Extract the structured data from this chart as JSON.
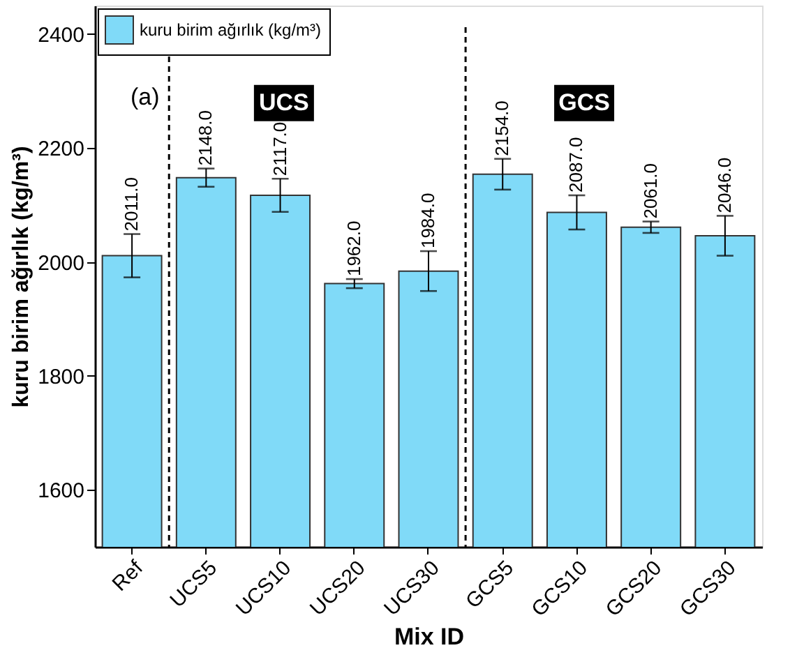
{
  "chart_data": {
    "type": "bar",
    "categories": [
      "Ref",
      "UCS5",
      "UCS10",
      "UCS20",
      "UCS30",
      "GCS5",
      "GCS10",
      "GCS20",
      "GCS30"
    ],
    "series": [
      {
        "name": "kuru birim ağırlık (kg/m³)",
        "color": "#80daf8",
        "values": [
          2011.0,
          2148.0,
          2117.0,
          1962.0,
          1984.0,
          2154.0,
          2087.0,
          2061.0,
          2046.0
        ],
        "errors": [
          38,
          16,
          29,
          8,
          35,
          27,
          30,
          10,
          35
        ]
      }
    ],
    "xlabel": "Mix ID",
    "ylabel": "kuru birim ağırlık (kg/m³)",
    "ylim": [
      1500,
      2450
    ],
    "yticks": [
      1600,
      1800,
      2000,
      2200,
      2400
    ],
    "value_labels": [
      "2011.0",
      "2148.0",
      "2117.0",
      "1962.0",
      "1984.0",
      "2154.0",
      "2087.0",
      "2061.0",
      "2046.0"
    ],
    "grid": false,
    "legend": "top left",
    "annotations": [
      "(a)",
      "UCS",
      "GCS"
    ]
  }
}
